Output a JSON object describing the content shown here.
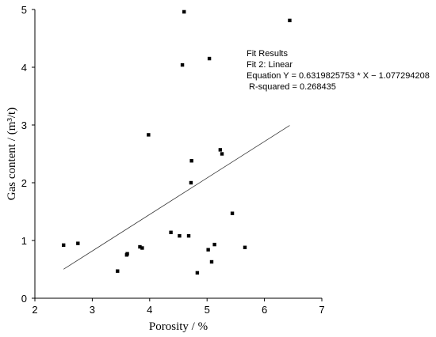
{
  "chart_data": {
    "type": "scatter",
    "xlabel": "Porosity / %",
    "ylabel": "Gas content / (m³/t)",
    "xlim": [
      2,
      7
    ],
    "ylim": [
      0,
      5
    ],
    "xticks": [
      "2",
      "3",
      "4",
      "5",
      "6",
      "7"
    ],
    "yticks": [
      "0",
      "1",
      "2",
      "3",
      "4",
      "5"
    ],
    "grid": false,
    "points": [
      {
        "x": 2.5,
        "y": 0.92
      },
      {
        "x": 2.75,
        "y": 0.95
      },
      {
        "x": 3.44,
        "y": 0.47
      },
      {
        "x": 3.6,
        "y": 0.75
      },
      {
        "x": 3.61,
        "y": 0.77
      },
      {
        "x": 3.83,
        "y": 0.89
      },
      {
        "x": 3.87,
        "y": 0.87
      },
      {
        "x": 3.98,
        "y": 2.83
      },
      {
        "x": 4.37,
        "y": 1.14
      },
      {
        "x": 4.52,
        "y": 1.08
      },
      {
        "x": 4.57,
        "y": 4.04
      },
      {
        "x": 4.6,
        "y": 4.96
      },
      {
        "x": 4.68,
        "y": 1.08
      },
      {
        "x": 4.72,
        "y": 2.0
      },
      {
        "x": 4.73,
        "y": 2.38
      },
      {
        "x": 4.83,
        "y": 0.44
      },
      {
        "x": 5.02,
        "y": 0.84
      },
      {
        "x": 5.04,
        "y": 4.15
      },
      {
        "x": 5.08,
        "y": 0.63
      },
      {
        "x": 5.13,
        "y": 0.93
      },
      {
        "x": 5.23,
        "y": 2.57
      },
      {
        "x": 5.26,
        "y": 2.5
      },
      {
        "x": 5.44,
        "y": 1.47
      },
      {
        "x": 5.66,
        "y": 0.88
      },
      {
        "x": 6.44,
        "y": 4.81
      }
    ],
    "fit_line": {
      "slope": 0.6319825753,
      "intercept": -1.077294208,
      "x_range": [
        2.5,
        6.44
      ]
    },
    "annotation": [
      "Fit Results",
      "Fit 2: Linear",
      "Equation Y = 0.6319825753 * X − 1.077294208",
      " R-squared = 0.268435"
    ]
  }
}
